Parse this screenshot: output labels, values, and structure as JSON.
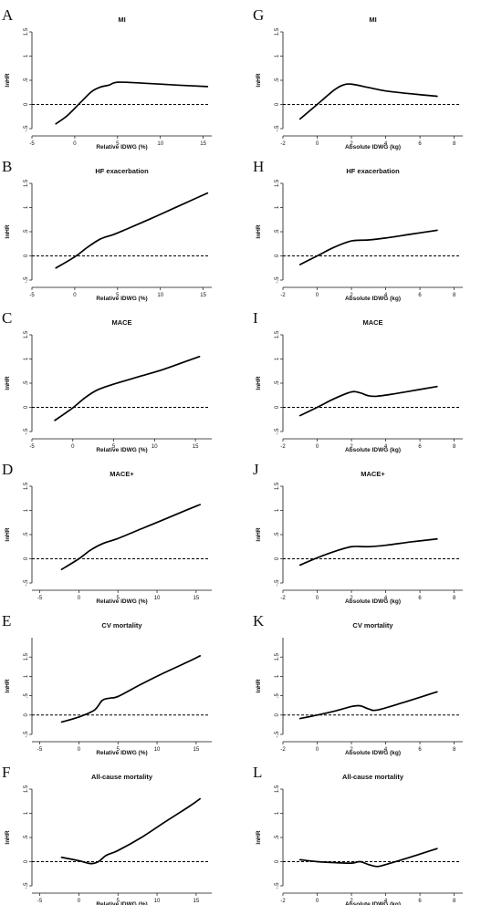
{
  "chart_data": [
    {
      "panel": "A",
      "type": "line",
      "title": "MI",
      "xlabel": "Relative IDWG (%)",
      "ylabel": "lnHR",
      "xlim": [
        -5,
        16
      ],
      "ylim": [
        -0.5,
        1.5
      ],
      "xticks": [
        -5,
        0,
        5,
        10,
        15
      ],
      "yticks": [
        -0.5,
        0,
        0.5,
        1,
        1.5
      ],
      "ytick_labels": [
        "",
        "0",
        ".5",
        "1",
        "1.5"
      ],
      "reference_y": 0,
      "grid": false,
      "x": [
        -2.2,
        -1,
        0,
        1,
        2,
        3,
        4,
        5,
        8,
        12,
        15.5
      ],
      "y": [
        -0.4,
        -0.25,
        -0.08,
        0.1,
        0.27,
        0.36,
        0.4,
        0.46,
        0.44,
        0.4,
        0.37
      ]
    },
    {
      "panel": "B",
      "type": "line",
      "title": "HF exacerbation",
      "xlabel": "Relative IDWG (%)",
      "ylabel": "lnHR",
      "xlim": [
        -5,
        16
      ],
      "ylim": [
        -0.5,
        1.5
      ],
      "xticks": [
        -5,
        0,
        5,
        10,
        15
      ],
      "yticks": [
        -0.5,
        0,
        0.5,
        1,
        1.5
      ],
      "ytick_labels": [
        "",
        "0",
        ".5",
        "1",
        "1.5"
      ],
      "reference_y": 0,
      "grid": false,
      "x": [
        -2.2,
        0,
        1.5,
        3,
        4.5,
        6,
        9,
        12,
        15.5
      ],
      "y": [
        -0.25,
        -0.02,
        0.18,
        0.35,
        0.44,
        0.55,
        0.78,
        1.02,
        1.3
      ]
    },
    {
      "panel": "C",
      "type": "line",
      "title": "MACE",
      "xlabel": "Relative IDWG (%)",
      "ylabel": "lnHR",
      "xlim": [
        -5,
        17
      ],
      "ylim": [
        -0.5,
        1.5
      ],
      "xticks": [
        -5,
        0,
        5,
        10,
        15
      ],
      "yticks": [
        -0.5,
        0,
        0.5,
        1,
        1.5
      ],
      "ytick_labels": [
        "",
        "0",
        ".5",
        "1",
        "1.5"
      ],
      "reference_y": 0,
      "grid": false,
      "x": [
        -2.2,
        0,
        1.5,
        3,
        5,
        8,
        11,
        13.5,
        15.5
      ],
      "y": [
        -0.27,
        -0.01,
        0.2,
        0.36,
        0.48,
        0.63,
        0.78,
        0.93,
        1.05
      ]
    },
    {
      "panel": "D",
      "type": "line",
      "title": "MACE+",
      "xlabel": "Relative IDWG (%)",
      "ylabel": "lnHR",
      "xlim": [
        -6,
        17
      ],
      "ylim": [
        -0.5,
        1.5
      ],
      "xticks": [
        -5,
        0,
        5,
        10,
        15
      ],
      "yticks": [
        -0.5,
        0,
        0.5,
        1,
        1.5
      ],
      "ytick_labels": [
        "",
        "0",
        ".5",
        "1",
        "1.5"
      ],
      "reference_y": 0,
      "grid": false,
      "x": [
        -2.2,
        0,
        1.5,
        3,
        5,
        8,
        11,
        13.5,
        15.5
      ],
      "y": [
        -0.22,
        0.0,
        0.18,
        0.31,
        0.42,
        0.62,
        0.82,
        0.99,
        1.12
      ]
    },
    {
      "panel": "E",
      "type": "line",
      "title": "CV mortality",
      "xlabel": "Relative IDWG (%)",
      "ylabel": "lnHR",
      "xlim": [
        -6,
        17
      ],
      "ylim": [
        -0.5,
        2
      ],
      "xticks": [
        -5,
        0,
        5,
        10,
        15
      ],
      "yticks": [
        -0.5,
        0,
        0.5,
        1,
        1.5
      ],
      "ytick_labels": [
        "",
        "0",
        ".5",
        "1",
        "1.5"
      ],
      "reference_y": 0,
      "grid": false,
      "x": [
        -2.2,
        0,
        2,
        3,
        4,
        5,
        8,
        11,
        14,
        15.5
      ],
      "y": [
        -0.18,
        -0.05,
        0.13,
        0.38,
        0.44,
        0.48,
        0.8,
        1.1,
        1.38,
        1.53
      ]
    },
    {
      "panel": "F",
      "type": "line",
      "title": "All-cause mortality",
      "xlabel": "Relative IDWG (%)",
      "ylabel": "lnHR",
      "xlim": [
        -6,
        17
      ],
      "ylim": [
        -0.5,
        1.5
      ],
      "xticks": [
        -5,
        0,
        5,
        10,
        15
      ],
      "yticks": [
        -0.5,
        0,
        0.5,
        1,
        1.5
      ],
      "ytick_labels": [
        "",
        "0",
        ".5",
        "1",
        "1.5"
      ],
      "reference_y": 0,
      "grid": false,
      "x": [
        -2.2,
        0,
        1.5,
        2.5,
        3.5,
        5,
        8,
        11,
        14,
        15.5
      ],
      "y": [
        0.09,
        0.02,
        -0.04,
        0.0,
        0.13,
        0.23,
        0.5,
        0.82,
        1.13,
        1.3
      ]
    },
    {
      "panel": "G",
      "type": "line",
      "title": "MI",
      "xlabel": "Absolute IDWG (kg)",
      "ylabel": "lnHR",
      "xlim": [
        -2,
        8.5
      ],
      "ylim": [
        -0.5,
        1.5
      ],
      "xticks": [
        -2,
        0,
        2,
        4,
        6,
        8
      ],
      "yticks": [
        -0.5,
        0,
        0.5,
        1,
        1.5
      ],
      "ytick_labels": [
        "",
        "0",
        ".5",
        "1",
        "1.5"
      ],
      "reference_y": 0,
      "grid": false,
      "x": [
        -1,
        0,
        1,
        1.5,
        2,
        3,
        4,
        5.5,
        7
      ],
      "y": [
        -0.3,
        0.0,
        0.3,
        0.4,
        0.42,
        0.35,
        0.28,
        0.22,
        0.17
      ]
    },
    {
      "panel": "H",
      "type": "line",
      "title": "HF exacerbation",
      "xlabel": "Absolute IDWG (kg)",
      "ylabel": "lnHR",
      "xlim": [
        -2,
        8.5
      ],
      "ylim": [
        -0.5,
        1.5
      ],
      "xticks": [
        -2,
        0,
        2,
        4,
        6,
        8
      ],
      "yticks": [
        -0.5,
        0,
        0.5,
        1,
        1.5
      ],
      "ytick_labels": [
        "",
        "0",
        ".5",
        "1",
        "1.5"
      ],
      "reference_y": 0,
      "grid": false,
      "x": [
        -1,
        0,
        1,
        2,
        3,
        4,
        5.5,
        7
      ],
      "y": [
        -0.18,
        0.0,
        0.18,
        0.31,
        0.33,
        0.37,
        0.45,
        0.53
      ]
    },
    {
      "panel": "I",
      "type": "line",
      "title": "MACE",
      "xlabel": "Absolute IDWG (kg)",
      "ylabel": "lnHR",
      "xlim": [
        -2,
        8.5
      ],
      "ylim": [
        -0.5,
        1.5
      ],
      "xticks": [
        -2,
        0,
        2,
        4,
        6,
        8
      ],
      "yticks": [
        -0.5,
        0,
        0.5,
        1,
        1.5
      ],
      "ytick_labels": [
        "",
        "0",
        ".5",
        "1",
        "1.5"
      ],
      "reference_y": 0,
      "grid": false,
      "x": [
        -1,
        0,
        1,
        2,
        2.5,
        3,
        3.5,
        4.5,
        6,
        7
      ],
      "y": [
        -0.17,
        0.0,
        0.18,
        0.32,
        0.3,
        0.24,
        0.23,
        0.28,
        0.37,
        0.43
      ]
    },
    {
      "panel": "J",
      "type": "line",
      "title": "MACE+",
      "xlabel": "Absolute IDWG (kg)",
      "ylabel": "lnHR",
      "xlim": [
        -2,
        8.5
      ],
      "ylim": [
        -0.5,
        1.5
      ],
      "xticks": [
        -2,
        0,
        2,
        4,
        6,
        8
      ],
      "yticks": [
        -0.5,
        0,
        0.5,
        1,
        1.5
      ],
      "ytick_labels": [
        "",
        "0",
        ".5",
        "1",
        "1.5"
      ],
      "reference_y": 0,
      "grid": false,
      "x": [
        -1,
        0,
        1,
        2,
        3,
        4,
        5.5,
        7
      ],
      "y": [
        -0.13,
        0.02,
        0.15,
        0.25,
        0.25,
        0.28,
        0.35,
        0.41
      ]
    },
    {
      "panel": "K",
      "type": "line",
      "title": "CV mortality",
      "xlabel": "Absolute IDWG (kg)",
      "ylabel": "lnHR",
      "xlim": [
        -2,
        8.5
      ],
      "ylim": [
        -0.5,
        2
      ],
      "xticks": [
        -2,
        0,
        2,
        4,
        6,
        8
      ],
      "yticks": [
        -0.5,
        0,
        0.5,
        1,
        1.5
      ],
      "ytick_labels": [
        "",
        "0",
        ".5",
        "1",
        "1.5"
      ],
      "reference_y": 0,
      "grid": false,
      "x": [
        -1,
        0,
        1,
        2,
        2.5,
        3,
        3.5,
        5,
        7
      ],
      "y": [
        -0.09,
        0.0,
        0.1,
        0.22,
        0.24,
        0.16,
        0.13,
        0.32,
        0.6
      ]
    },
    {
      "panel": "L",
      "type": "line",
      "title": "All-cause mortality",
      "xlabel": "Absolute IDWG (kg)",
      "ylabel": "lnHR",
      "xlim": [
        -2,
        8.5
      ],
      "ylim": [
        -0.5,
        1.5
      ],
      "xticks": [
        -2,
        0,
        2,
        4,
        6,
        8
      ],
      "yticks": [
        -0.5,
        0,
        0.5,
        1,
        1.5
      ],
      "ytick_labels": [
        "",
        "0",
        ".5",
        "1",
        "1.5"
      ],
      "reference_y": 0,
      "grid": false,
      "x": [
        -1,
        0,
        1,
        2,
        2.5,
        3,
        3.5,
        4,
        5.5,
        7
      ],
      "y": [
        0.04,
        0.0,
        -0.02,
        -0.03,
        0.0,
        -0.06,
        -0.1,
        -0.06,
        0.1,
        0.27
      ]
    }
  ]
}
